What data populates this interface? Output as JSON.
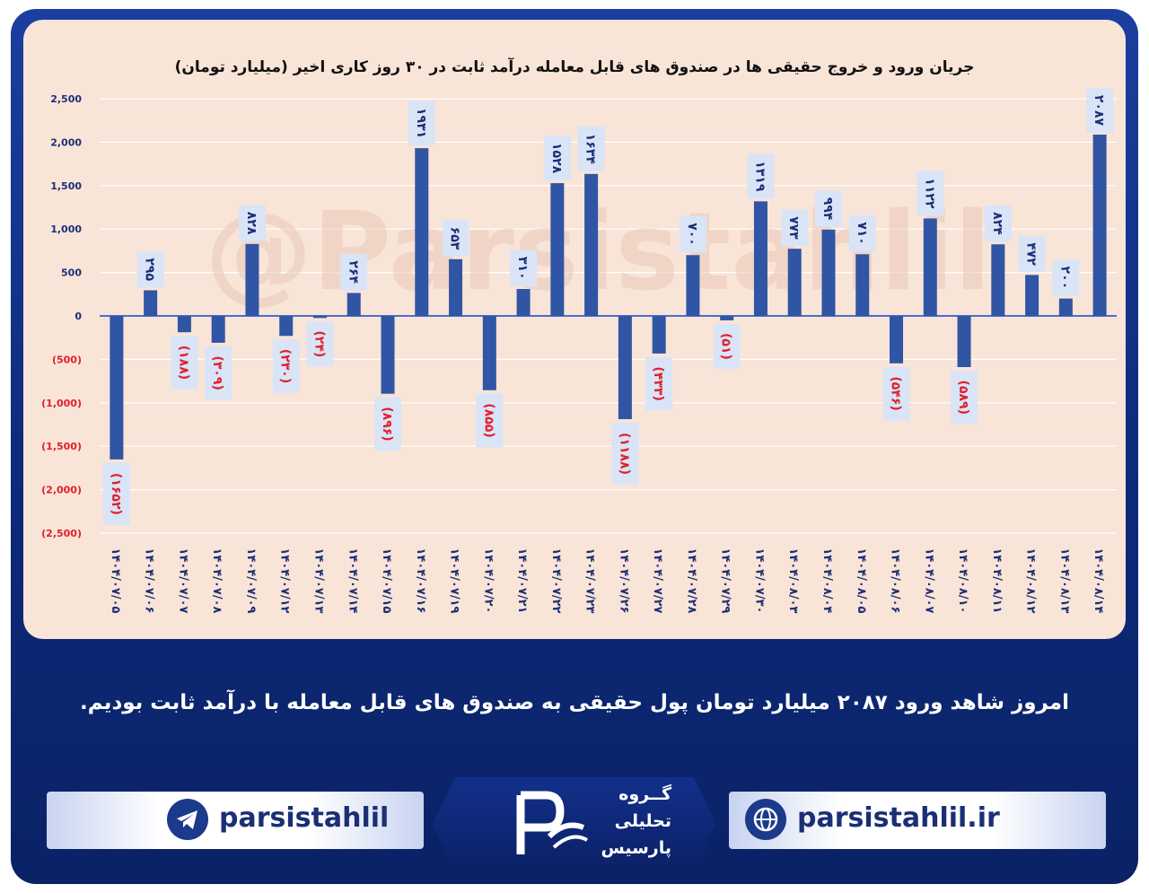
{
  "chart_data": {
    "type": "bar",
    "title": "جریان ورود و خروج حقیقی ها در صندوق های قابل معامله درآمد ثابت در ۳۰ روز کاری اخیر (میلیارد تومان)",
    "categories": [
      "۱۴۰۴/۰۷/۰۵",
      "۱۴۰۴/۰۷/۰۶",
      "۱۴۰۴/۰۷/۰۷",
      "۱۴۰۴/۰۷/۰۸",
      "۱۴۰۴/۰۷/۰۹",
      "۱۴۰۴/۰۷/۱۲",
      "۱۴۰۴/۰۷/۱۳",
      "۱۴۰۴/۰۷/۱۴",
      "۱۴۰۴/۰۷/۱۵",
      "۱۴۰۴/۰۷/۱۶",
      "۱۴۰۴/۰۷/۱۹",
      "۱۴۰۴/۰۷/۲۰",
      "۱۴۰۴/۰۷/۲۱",
      "۱۴۰۴/۰۷/۲۲",
      "۱۴۰۴/۰۷/۲۳",
      "۱۴۰۴/۰۷/۲۶",
      "۱۴۰۴/۰۷/۲۷",
      "۱۴۰۴/۰۷/۲۸",
      "۱۴۰۴/۰۷/۲۹",
      "۱۴۰۴/۰۷/۳۰",
      "۱۴۰۴/۰۸/۰۳",
      "۱۴۰۴/۰۸/۰۴",
      "۱۴۰۴/۰۸/۰۵",
      "۱۴۰۴/۰۸/۰۶",
      "۱۴۰۴/۰۸/۰۷",
      "۱۴۰۴/۰۸/۱۰",
      "۱۴۰۴/۰۸/۱۱",
      "۱۴۰۴/۰۸/۱۲",
      "۱۴۰۴/۰۸/۱۳",
      "۱۴۰۴/۰۸/۱۴"
    ],
    "values": [
      -1652,
      295,
      -188,
      -309,
      828,
      -230,
      -24,
      264,
      -896,
      1931,
      653,
      -855,
      310,
      1528,
      1634,
      -1188,
      -433,
      700,
      -51,
      1319,
      773,
      994,
      710,
      -546,
      1122,
      -589,
      824,
      472,
      200,
      2087
    ],
    "data_labels": [
      "(۱۶۵۲)",
      "۲۹۵",
      "(۱۸۸)",
      "(۳۰۹)",
      "۸۲۸",
      "(۲۳۰)",
      "(۲۴)",
      "۲۶۴",
      "(۸۹۶)",
      "۱۹۳۱",
      "۶۵۳",
      "(۸۵۵)",
      "۳۱۰",
      "۱۵۲۸",
      "۱۶۳۴",
      "(۱۱۸۸)",
      "(۴۳۳)",
      "۷۰۰",
      "(۵۱)",
      "۱۳۱۹",
      "۷۷۳",
      "۹۹۴",
      "۷۱۰",
      "(۵۴۶)",
      "۱۱۲۲",
      "(۵۸۹)",
      "۸۲۴",
      "۴۷۲",
      "۲۰۰",
      "۲۰۸۷"
    ],
    "y_ticks": [
      {
        "value": 2500,
        "label": "2,500"
      },
      {
        "value": 2000,
        "label": "2,000"
      },
      {
        "value": 1500,
        "label": "1,500"
      },
      {
        "value": 1000,
        "label": "1,000"
      },
      {
        "value": 500,
        "label": "500"
      },
      {
        "value": 0,
        "label": "0"
      },
      {
        "value": -500,
        "label": "(500)"
      },
      {
        "value": -1000,
        "label": "(1,000)"
      },
      {
        "value": -1500,
        "label": "(1,500)"
      },
      {
        "value": -2000,
        "label": "(2,000)"
      },
      {
        "value": -2500,
        "label": "(2,500)"
      }
    ],
    "ylim": [
      -2500,
      2500
    ],
    "grid": true,
    "bar_color": "#2f55a4",
    "negative_label_color": "#e0202a",
    "positive_label_color": "#1b2f74",
    "watermark": "@Parsistahlil"
  },
  "caption": "امروز شاهد ورود ۲۰۸۷ میلیارد تومان پول حقیقی به صندوق های قابل معامله با درآمد ثابت بودیم.",
  "footer": {
    "telegram_handle": "parsistahlil",
    "website": "parsistahlil.ir",
    "logo_line1": "گــروه",
    "logo_line2": "تحلیلی",
    "logo_line3": "پارسیس",
    "telegram_icon": "telegram-icon",
    "web_icon": "globe-icon"
  }
}
